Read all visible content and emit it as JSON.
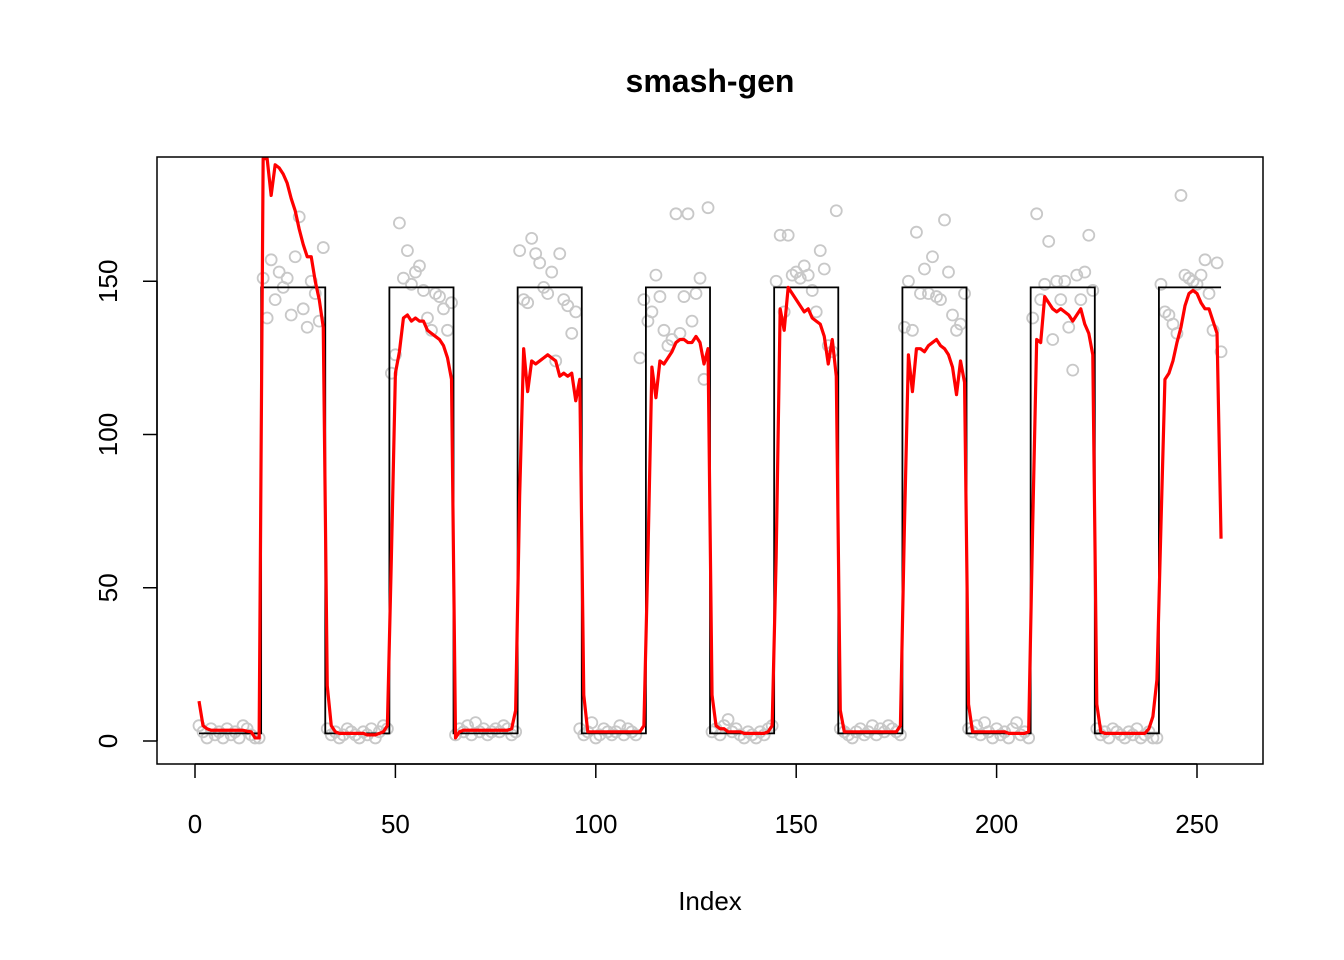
{
  "chart_data": {
    "type": "scatter",
    "title": "smash-gen",
    "xlabel": "Index",
    "ylabel": "",
    "xlim": [
      0,
      256
    ],
    "ylim": [
      0,
      190
    ],
    "x_ticks": [
      0,
      50,
      100,
      150,
      200,
      250
    ],
    "x_tick_labels": [
      "0",
      "50",
      "100",
      "150",
      "200",
      "250"
    ],
    "y_ticks": [
      0,
      50,
      100,
      150
    ],
    "y_tick_labels": [
      "0",
      "50",
      "100",
      "150"
    ],
    "grid": false,
    "legend": "none",
    "colors": {
      "points": "#c8c8c8",
      "truth": "#000000",
      "estimate": "#ff0000"
    },
    "series": [
      {
        "kind": "points",
        "x": [
          1,
          2,
          3,
          4,
          5,
          6,
          7,
          8,
          9,
          10,
          11,
          12,
          13,
          14,
          15,
          16,
          17,
          18,
          19,
          20,
          21,
          22,
          23,
          24,
          25,
          26,
          27,
          28,
          29,
          30,
          31,
          32,
          33,
          34,
          35,
          36,
          37,
          38,
          39,
          40,
          41,
          42,
          43,
          44,
          45,
          46,
          47,
          48,
          49,
          50,
          51,
          52,
          53,
          54,
          55,
          56,
          57,
          58,
          59,
          60,
          61,
          62,
          63,
          64,
          65,
          66,
          67,
          68,
          69,
          70,
          71,
          72,
          73,
          74,
          75,
          76,
          77,
          78,
          79,
          80,
          81,
          82,
          83,
          84,
          85,
          86,
          87,
          88,
          89,
          90,
          91,
          92,
          93,
          94,
          95,
          96,
          97,
          98,
          99,
          100,
          101,
          102,
          103,
          104,
          105,
          106,
          107,
          108,
          109,
          110,
          111,
          112,
          113,
          114,
          115,
          116,
          117,
          118,
          119,
          120,
          121,
          122,
          123,
          124,
          125,
          126,
          127,
          128,
          129,
          130,
          131,
          132,
          133,
          134,
          135,
          136,
          137,
          138,
          139,
          140,
          141,
          142,
          143,
          144,
          145,
          146,
          147,
          148,
          149,
          150,
          151,
          152,
          153,
          154,
          155,
          156,
          157,
          158,
          159,
          160,
          161,
          162,
          163,
          164,
          165,
          166,
          167,
          168,
          169,
          170,
          171,
          172,
          173,
          174,
          175,
          176,
          177,
          178,
          179,
          180,
          181,
          182,
          183,
          184,
          185,
          186,
          187,
          188,
          189,
          190,
          191,
          192,
          193,
          194,
          195,
          196,
          197,
          198,
          199,
          200,
          201,
          202,
          203,
          204,
          205,
          206,
          207,
          208,
          209,
          210,
          211,
          212,
          213,
          214,
          215,
          216,
          217,
          218,
          219,
          220,
          221,
          222,
          223,
          224,
          225,
          226,
          227,
          228,
          229,
          230,
          231,
          232,
          233,
          234,
          235,
          236,
          237,
          238,
          239,
          240,
          241,
          242,
          243,
          244,
          245,
          246,
          247,
          248,
          249,
          250,
          251,
          252,
          253,
          254,
          255,
          256
        ],
        "y": [
          5,
          3,
          1,
          4,
          2,
          3,
          1,
          4,
          2,
          3,
          1,
          5,
          4,
          2,
          1,
          1,
          151,
          138,
          157,
          144,
          153,
          148,
          151,
          139,
          158,
          171,
          141,
          135,
          150,
          146,
          137,
          161,
          4,
          2,
          3,
          1,
          2,
          4,
          3,
          2,
          1,
          3,
          2,
          4,
          1,
          3,
          5,
          4,
          120,
          126,
          169,
          151,
          160,
          149,
          153,
          155,
          147,
          138,
          134,
          146,
          145,
          141,
          134,
          143,
          2,
          4,
          3,
          5,
          2,
          6,
          3,
          4,
          2,
          3,
          4,
          3,
          5,
          4,
          2,
          3,
          160,
          144,
          143,
          164,
          159,
          156,
          148,
          146,
          153,
          124,
          159,
          144,
          142,
          133,
          140,
          4,
          2,
          3,
          6,
          1,
          2,
          4,
          3,
          2,
          3,
          5,
          2,
          4,
          3,
          2,
          125,
          144,
          137,
          140,
          152,
          145,
          134,
          129,
          131,
          172,
          133,
          145,
          172,
          137,
          146,
          151,
          118,
          174,
          3,
          4,
          2,
          5,
          7,
          3,
          4,
          2,
          1,
          3,
          2,
          1,
          3,
          2,
          4,
          5,
          150,
          165,
          140,
          165,
          152,
          153,
          151,
          155,
          152,
          147,
          140,
          160,
          154,
          129,
          127,
          173,
          4,
          3,
          2,
          1,
          3,
          4,
          2,
          3,
          5,
          2,
          4,
          3,
          5,
          4,
          3,
          2,
          135,
          150,
          134,
          166,
          146,
          154,
          146,
          158,
          145,
          144,
          170,
          153,
          139,
          134,
          136,
          146,
          4,
          3,
          5,
          2,
          6,
          3,
          1,
          4,
          2,
          3,
          1,
          4,
          6,
          2,
          3,
          1,
          138,
          172,
          144,
          149,
          163,
          131,
          150,
          144,
          150,
          135,
          121,
          152,
          144,
          153,
          165,
          147,
          4,
          2,
          3,
          1,
          4,
          3,
          2,
          1,
          3,
          2,
          4,
          1,
          2,
          3,
          1,
          1,
          149,
          140,
          139,
          136,
          133,
          178,
          152,
          151,
          150,
          149,
          152,
          157,
          146,
          134,
          156,
          127
        ]
      },
      {
        "kind": "truth",
        "x": [
          1,
          16.5,
          16.5,
          32.5,
          32.5,
          48.5,
          48.5,
          64.5,
          64.5,
          80.5,
          80.5,
          96.5,
          96.5,
          112.5,
          112.5,
          128.5,
          128.5,
          144.5,
          144.5,
          160.5,
          160.5,
          176.5,
          176.5,
          192.5,
          192.5,
          208.5,
          208.5,
          224.5,
          224.5,
          240.5,
          240.5,
          256
        ],
        "y": [
          2.5,
          2.5,
          148,
          148,
          2.5,
          2.5,
          148,
          148,
          2.5,
          2.5,
          148,
          148,
          2.5,
          2.5,
          148,
          148,
          2.5,
          2.5,
          148,
          148,
          2.5,
          2.5,
          148,
          148,
          2.5,
          2.5,
          148,
          148,
          2.5,
          2.5,
          148,
          148
        ]
      },
      {
        "kind": "estimate",
        "x": [
          1,
          2,
          3,
          4,
          5,
          6,
          7,
          8,
          9,
          10,
          11,
          12,
          13,
          14,
          15,
          16,
          17,
          18,
          19,
          20,
          21,
          22,
          23,
          24,
          25,
          26,
          27,
          28,
          29,
          30,
          31,
          32,
          33,
          34,
          35,
          36,
          37,
          38,
          39,
          40,
          41,
          42,
          43,
          44,
          45,
          46,
          47,
          48,
          49,
          50,
          51,
          52,
          53,
          54,
          55,
          56,
          57,
          58,
          59,
          60,
          61,
          62,
          63,
          64,
          65,
          66,
          67,
          68,
          69,
          70,
          71,
          72,
          73,
          74,
          75,
          76,
          77,
          78,
          79,
          80,
          81,
          82,
          83,
          84,
          85,
          86,
          87,
          88,
          89,
          90,
          91,
          92,
          93,
          94,
          95,
          96,
          97,
          98,
          99,
          100,
          101,
          102,
          103,
          104,
          105,
          106,
          107,
          108,
          109,
          110,
          111,
          112,
          113,
          114,
          115,
          116,
          117,
          118,
          119,
          120,
          121,
          122,
          123,
          124,
          125,
          126,
          127,
          128,
          129,
          130,
          131,
          132,
          133,
          134,
          135,
          136,
          137,
          138,
          139,
          140,
          141,
          142,
          143,
          144,
          145,
          146,
          147,
          148,
          149,
          150,
          151,
          152,
          153,
          154,
          155,
          156,
          157,
          158,
          159,
          160,
          161,
          162,
          163,
          164,
          165,
          166,
          167,
          168,
          169,
          170,
          171,
          172,
          173,
          174,
          175,
          176,
          177,
          178,
          179,
          180,
          181,
          182,
          183,
          184,
          185,
          186,
          187,
          188,
          189,
          190,
          191,
          192,
          193,
          194,
          195,
          196,
          197,
          198,
          199,
          200,
          201,
          202,
          203,
          204,
          205,
          206,
          207,
          208,
          209,
          210,
          211,
          212,
          213,
          214,
          215,
          216,
          217,
          218,
          219,
          220,
          221,
          222,
          223,
          224,
          225,
          226,
          227,
          228,
          229,
          230,
          231,
          232,
          233,
          234,
          235,
          236,
          237,
          238,
          239,
          240,
          241,
          242,
          243,
          244,
          245,
          246,
          247,
          248,
          249,
          250,
          251,
          252,
          253,
          254,
          255,
          256
        ],
        "y": [
          13,
          5,
          4,
          3.5,
          3.5,
          3.5,
          3.5,
          3.5,
          3.5,
          3.5,
          3.5,
          3.5,
          3.2,
          3,
          1,
          1,
          190,
          190,
          178,
          188,
          187,
          185,
          182,
          177,
          173,
          167,
          162,
          158,
          158,
          150,
          144,
          135,
          18,
          5,
          3,
          2.5,
          2.5,
          2.5,
          2.5,
          2.5,
          2.5,
          2.5,
          2,
          2,
          2,
          2.5,
          3,
          5,
          60,
          120,
          127,
          138,
          139,
          137,
          138,
          137,
          137,
          134,
          133,
          132,
          131,
          129,
          125,
          118,
          1,
          3,
          3.5,
          3.5,
          3.5,
          3.5,
          3.5,
          3.5,
          3.5,
          3.5,
          3.5,
          3.5,
          3.5,
          3.5,
          4,
          10,
          80,
          128,
          114,
          124,
          123,
          124,
          125,
          126,
          125,
          124,
          119,
          120,
          119,
          120,
          111,
          118,
          15,
          3,
          3,
          3,
          3,
          3,
          3,
          3,
          3,
          3,
          3,
          3,
          3,
          3,
          3,
          5,
          60,
          122,
          112,
          124,
          123,
          125,
          127,
          130,
          131,
          131,
          130,
          130,
          132,
          130,
          123,
          128,
          15,
          5,
          4,
          4,
          3,
          3,
          3,
          3,
          2.5,
          2.5,
          2.5,
          2.5,
          2.5,
          2.5,
          3,
          5,
          60,
          141,
          134,
          148,
          146,
          144,
          142,
          140,
          141,
          138,
          137,
          136,
          132,
          123,
          131,
          119,
          10,
          3,
          3,
          3,
          3,
          3,
          3,
          3,
          3,
          3,
          3,
          3,
          3,
          3,
          3,
          5,
          70,
          126,
          114,
          128,
          128,
          127,
          129,
          130,
          131,
          129,
          128,
          126,
          122,
          113,
          124,
          117,
          12,
          3,
          3,
          3,
          3,
          3,
          3,
          3,
          3,
          3,
          2.5,
          2.5,
          2.5,
          2.5,
          2.5,
          3,
          70,
          131,
          130,
          145,
          143,
          141,
          140,
          141,
          140,
          139,
          137,
          139,
          141,
          136,
          133,
          126,
          12,
          3,
          2.5,
          2.5,
          2.5,
          2.5,
          2.5,
          2.5,
          2.5,
          2.5,
          2.5,
          2.5,
          2.5,
          4,
          8,
          20,
          70,
          118,
          120,
          124,
          130,
          135,
          142,
          146,
          147,
          146,
          143,
          141,
          141,
          137,
          133,
          66
        ]
      }
    ]
  }
}
